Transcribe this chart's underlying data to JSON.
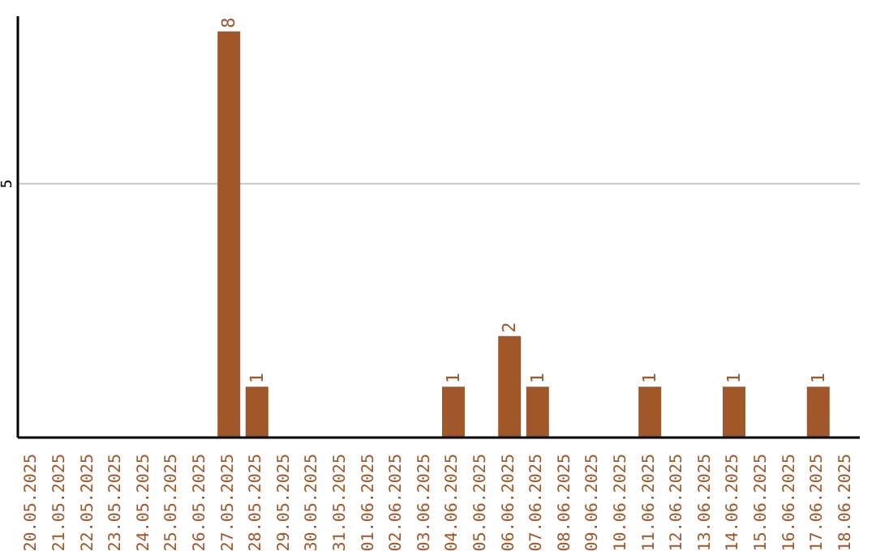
{
  "chart_data": {
    "type": "bar",
    "categories": [
      "20.05.2025",
      "21.05.2025",
      "22.05.2025",
      "23.05.2025",
      "24.05.2025",
      "25.05.2025",
      "26.05.2025",
      "27.05.2025",
      "28.05.2025",
      "29.05.2025",
      "30.05.2025",
      "31.05.2025",
      "01.06.2025",
      "02.06.2025",
      "03.06.2025",
      "04.06.2025",
      "05.06.2025",
      "06.06.2025",
      "07.06.2025",
      "08.06.2025",
      "09.06.2025",
      "10.06.2025",
      "11.06.2025",
      "12.06.2025",
      "13.06.2025",
      "14.06.2025",
      "15.06.2025",
      "16.06.2025",
      "17.06.2025",
      "18.06.2025"
    ],
    "values": [
      0,
      0,
      0,
      0,
      0,
      0,
      0,
      8,
      1,
      0,
      0,
      0,
      0,
      0,
      0,
      1,
      0,
      2,
      1,
      0,
      0,
      0,
      1,
      0,
      0,
      1,
      0,
      0,
      1,
      0
    ],
    "value_labels": [
      null,
      null,
      null,
      null,
      null,
      null,
      null,
      "8",
      "1",
      null,
      null,
      null,
      null,
      null,
      null,
      "1",
      null,
      "2",
      "1",
      null,
      null,
      null,
      "1",
      null,
      null,
      "1",
      null,
      null,
      "1",
      null
    ],
    "color": "#a0572a",
    "ylim": [
      0,
      8.3
    ],
    "yticks": [
      5
    ],
    "grid": "y"
  }
}
